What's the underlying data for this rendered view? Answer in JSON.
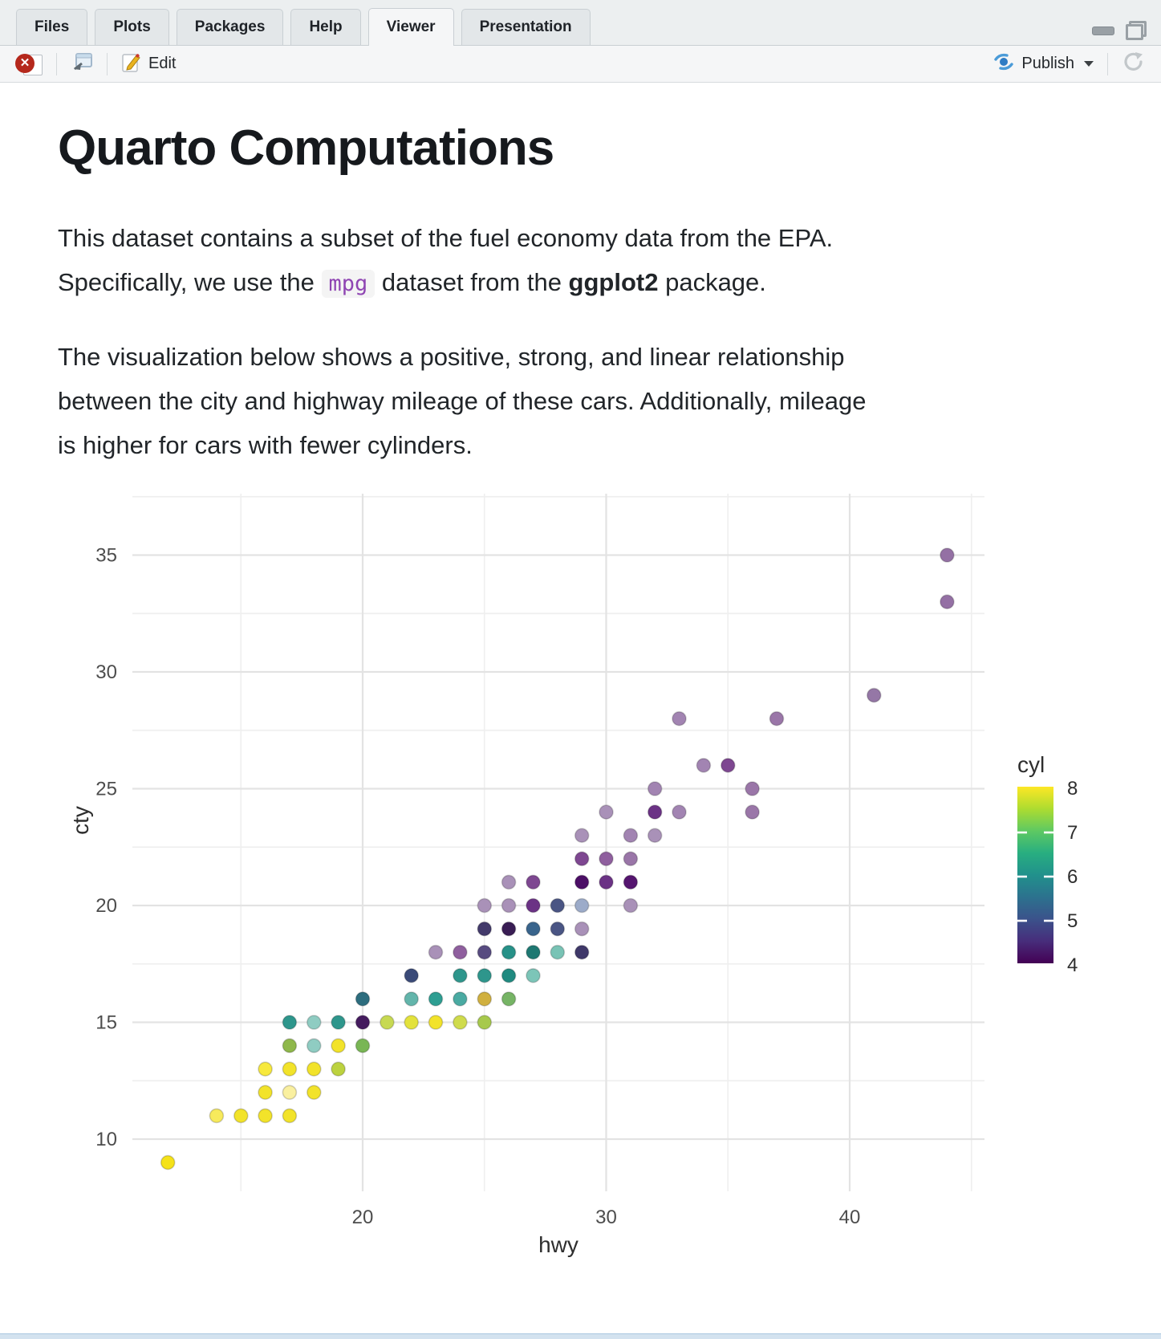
{
  "tabs": {
    "items": [
      {
        "label": "Files",
        "active": false
      },
      {
        "label": "Plots",
        "active": false
      },
      {
        "label": "Packages",
        "active": false
      },
      {
        "label": "Help",
        "active": false
      },
      {
        "label": "Viewer",
        "active": true
      },
      {
        "label": "Presentation",
        "active": false
      }
    ]
  },
  "toolbar": {
    "stop_glyph": "✕",
    "edit_label": "Edit",
    "publish_label": "Publish"
  },
  "document": {
    "title": "Quarto Computations",
    "p1": {
      "line1": "This dataset contains a subset of the fuel economy data from the EPA.",
      "line2_before": "Specifically, we use the ",
      "code": "mpg",
      "line2_mid": " dataset from the ",
      "bold": "ggplot2",
      "line2_after": " package."
    },
    "p2_lines": [
      "The visualization below shows a positive, strong, and linear relationship",
      "between the city and highway mileage of these cars. Additionally, mileage",
      "is higher for cars with fewer cylinders."
    ]
  },
  "chart_data": {
    "type": "scatter",
    "title": "",
    "xlabel": "hwy",
    "ylabel": "cty",
    "x_ticks": [
      20,
      30,
      40
    ],
    "x_minor": [
      15,
      25,
      35,
      45
    ],
    "y_ticks": [
      10,
      15,
      20,
      25,
      30,
      35
    ],
    "y_minor": [
      12.5,
      17.5,
      22.5,
      27.5,
      32.5,
      37.5
    ],
    "x_range": [
      10.5,
      45.5
    ],
    "y_range": [
      7.8,
      37.6
    ],
    "grid": true,
    "point_radius_px": 8.5,
    "legend_position": "right",
    "legend": {
      "title": "cyl",
      "breaks": [
        8,
        7,
        6,
        5,
        4
      ],
      "viridis_stops": [
        "#fde725",
        "#addc30",
        "#5ec962",
        "#28ae80",
        "#21918c",
        "#2c728e",
        "#3b528b",
        "#472d7b",
        "#440154"
      ]
    },
    "points": [
      {
        "hwy": 44,
        "cty": 35,
        "cyl": 4,
        "color": "#9470a4"
      },
      {
        "hwy": 44,
        "cty": 33,
        "cyl": 4,
        "color": "#9470a4"
      },
      {
        "hwy": 41,
        "cty": 29,
        "cyl": 4,
        "color": "#9577a6"
      },
      {
        "hwy": 33,
        "cty": 28,
        "cyl": 4,
        "color": "#a284b2"
      },
      {
        "hwy": 37,
        "cty": 28,
        "cyl": 4,
        "color": "#9a76a8"
      },
      {
        "hwy": 34,
        "cty": 26,
        "cyl": 4,
        "color": "#a284b2"
      },
      {
        "hwy": 35,
        "cty": 26,
        "cyl": 4,
        "color": "#7e4791"
      },
      {
        "hwy": 32,
        "cty": 25,
        "cyl": 4,
        "color": "#a284b2"
      },
      {
        "hwy": 36,
        "cty": 25,
        "cyl": 4,
        "color": "#9a76a8"
      },
      {
        "hwy": 30,
        "cty": 24,
        "cyl": 4,
        "color": "#a991b8"
      },
      {
        "hwy": 32,
        "cty": 24,
        "cyl": 4,
        "color": "#6b3285"
      },
      {
        "hwy": 33,
        "cty": 24,
        "cyl": 4,
        "color": "#a284b2"
      },
      {
        "hwy": 36,
        "cty": 24,
        "cyl": 4,
        "color": "#9a76a8"
      },
      {
        "hwy": 29,
        "cty": 23,
        "cyl": 4,
        "color": "#a991b8"
      },
      {
        "hwy": 31,
        "cty": 23,
        "cyl": 4,
        "color": "#a284b2"
      },
      {
        "hwy": 32,
        "cty": 23,
        "cyl": 4,
        "color": "#a991b8"
      },
      {
        "hwy": 29,
        "cty": 22,
        "cyl": 4,
        "color": "#7e4791"
      },
      {
        "hwy": 30,
        "cty": 22,
        "cyl": 4,
        "color": "#8f5f9e"
      },
      {
        "hwy": 31,
        "cty": 22,
        "cyl": 4,
        "color": "#9a76a8"
      },
      {
        "hwy": 26,
        "cty": 21,
        "cyl": 4,
        "color": "#a991b8"
      },
      {
        "hwy": 27,
        "cty": 21,
        "cyl": 4,
        "color": "#7e4791"
      },
      {
        "hwy": 29,
        "cty": 21,
        "cyl": 4,
        "color": "#4c0e66"
      },
      {
        "hwy": 30,
        "cty": 21,
        "cyl": 4,
        "color": "#6b3285"
      },
      {
        "hwy": 31,
        "cty": 21,
        "cyl": 4,
        "color": "#55156f"
      },
      {
        "hwy": 25,
        "cty": 20,
        "cyl": 4,
        "color": "#a991b8"
      },
      {
        "hwy": 26,
        "cty": 20,
        "cyl": 4,
        "color": "#a991b8"
      },
      {
        "hwy": 27,
        "cty": 20,
        "cyl": 4,
        "color": "#6b3285"
      },
      {
        "hwy": 28,
        "cty": 20,
        "cyl": "4/5",
        "color": "#4a5584"
      },
      {
        "hwy": 29,
        "cty": 20,
        "cyl": 5,
        "color": "#9cabc9"
      },
      {
        "hwy": 31,
        "cty": 20,
        "cyl": 4,
        "color": "#a991b8"
      },
      {
        "hwy": 25,
        "cty": 19,
        "cyl": "4/6",
        "color": "#433a6b"
      },
      {
        "hwy": 26,
        "cty": 19,
        "cyl": 4,
        "color": "#391d54"
      },
      {
        "hwy": 27,
        "cty": 19,
        "cyl": "4/6",
        "color": "#39648c"
      },
      {
        "hwy": 28,
        "cty": 19,
        "cyl": "4/5",
        "color": "#4a5584"
      },
      {
        "hwy": 29,
        "cty": 19,
        "cyl": 4,
        "color": "#a991b8"
      },
      {
        "hwy": 23,
        "cty": 18,
        "cyl": 4,
        "color": "#a991b8"
      },
      {
        "hwy": 24,
        "cty": 18,
        "cyl": 4,
        "color": "#8f5f9e"
      },
      {
        "hwy": 25,
        "cty": 18,
        "cyl": "4/6",
        "color": "#574b80"
      },
      {
        "hwy": 26,
        "cty": 18,
        "cyl": 6,
        "color": "#279188"
      },
      {
        "hwy": 27,
        "cty": 18,
        "cyl": 6,
        "color": "#1e7872"
      },
      {
        "hwy": 28,
        "cty": 18,
        "cyl": 6,
        "color": "#79c3b5"
      },
      {
        "hwy": 29,
        "cty": 18,
        "cyl": "4/6",
        "color": "#3f3869"
      },
      {
        "hwy": 22,
        "cty": 17,
        "cyl": "4/6",
        "color": "#3a4a78"
      },
      {
        "hwy": 24,
        "cty": 17,
        "cyl": 6,
        "color": "#2e968c"
      },
      {
        "hwy": 25,
        "cty": 17,
        "cyl": 6,
        "color": "#2e968c"
      },
      {
        "hwy": 26,
        "cty": 17,
        "cyl": 6,
        "color": "#1f8a80"
      },
      {
        "hwy": 27,
        "cty": 17,
        "cyl": 6,
        "color": "#7cc5b8"
      },
      {
        "hwy": 20,
        "cty": 16,
        "cyl": 6,
        "color": "#2d6d7e"
      },
      {
        "hwy": 22,
        "cty": 16,
        "cyl": 6,
        "color": "#63b5ab"
      },
      {
        "hwy": 23,
        "cty": 16,
        "cyl": 6,
        "color": "#2e9e92"
      },
      {
        "hwy": 24,
        "cty": 16,
        "cyl": 6,
        "color": "#4aaaa2"
      },
      {
        "hwy": 25,
        "cty": 16,
        "cyl": "6/8",
        "color": "#d0b03f"
      },
      {
        "hwy": 26,
        "cty": 16,
        "cyl": "6/8",
        "color": "#76b465"
      },
      {
        "hwy": 17,
        "cty": 15,
        "cyl": 6,
        "color": "#2e968c"
      },
      {
        "hwy": 18,
        "cty": 15,
        "cyl": 6,
        "color": "#8fccc2"
      },
      {
        "hwy": 19,
        "cty": 15,
        "cyl": 6,
        "color": "#2e968c"
      },
      {
        "hwy": 20,
        "cty": 15,
        "cyl": "4/6",
        "color": "#441b5e"
      },
      {
        "hwy": 21,
        "cty": 15,
        "cyl": 8,
        "color": "#c7d952"
      },
      {
        "hwy": 22,
        "cty": 15,
        "cyl": 8,
        "color": "#e3e23c"
      },
      {
        "hwy": 23,
        "cty": 15,
        "cyl": 8,
        "color": "#f2e32a"
      },
      {
        "hwy": 24,
        "cty": 15,
        "cyl": 8,
        "color": "#cfdb4c"
      },
      {
        "hwy": 25,
        "cty": 15,
        "cyl": "6/8",
        "color": "#a7c94c"
      },
      {
        "hwy": 17,
        "cty": 14,
        "cyl": "6/8",
        "color": "#8fb84b"
      },
      {
        "hwy": 18,
        "cty": 14,
        "cyl": 6,
        "color": "#8fccc2"
      },
      {
        "hwy": 19,
        "cty": 14,
        "cyl": 8,
        "color": "#f2e32a"
      },
      {
        "hwy": 20,
        "cty": 14,
        "cyl": "6/8",
        "color": "#79b655"
      },
      {
        "hwy": 16,
        "cty": 13,
        "cyl": 8,
        "color": "#f7e93d"
      },
      {
        "hwy": 17,
        "cty": 13,
        "cyl": 8,
        "color": "#f2e32a"
      },
      {
        "hwy": 18,
        "cty": 13,
        "cyl": 8,
        "color": "#f2e32a"
      },
      {
        "hwy": 19,
        "cty": 13,
        "cyl": 8,
        "color": "#bcd23f"
      },
      {
        "hwy": 16,
        "cty": 12,
        "cyl": 8,
        "color": "#f2e32a"
      },
      {
        "hwy": 17,
        "cty": 12,
        "cyl": 8,
        "color": "#faf0a0"
      },
      {
        "hwy": 18,
        "cty": 12,
        "cyl": 8,
        "color": "#f2e32a"
      },
      {
        "hwy": 14,
        "cty": 11,
        "cyl": 8,
        "color": "#f7ea5c"
      },
      {
        "hwy": 15,
        "cty": 11,
        "cyl": 8,
        "color": "#f2e32a"
      },
      {
        "hwy": 16,
        "cty": 11,
        "cyl": 8,
        "color": "#f2e32a"
      },
      {
        "hwy": 17,
        "cty": 11,
        "cyl": 8,
        "color": "#f2e32a"
      },
      {
        "hwy": 12,
        "cty": 9,
        "cyl": 8,
        "color": "#f5e219"
      }
    ]
  }
}
